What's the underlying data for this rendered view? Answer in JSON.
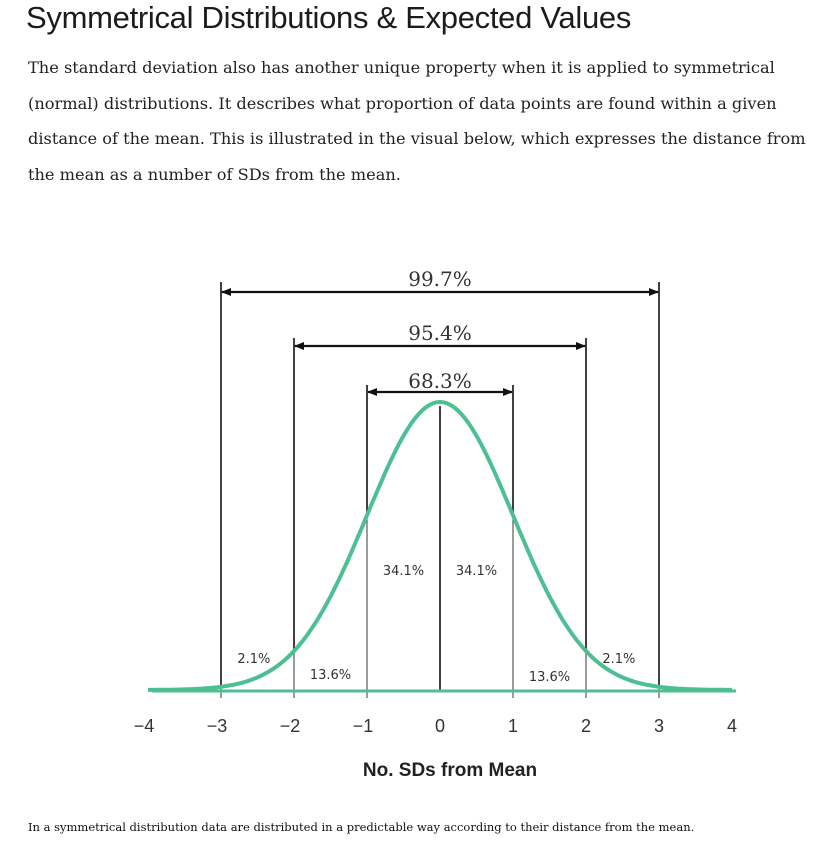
{
  "page": {
    "title": "Symmetrical Distributions & Expected Values",
    "paragraph": "The standard deviation also has another unique property when it is applied to symmetrical (normal) distributions. It describes what proportion of data points are found within a given distance of the mean. This is illustrated in the visual below, which expresses the distance from the mean as a number of SDs from the mean.",
    "caption": "In a symmetrical distribution data are distributed in a predictable way according to their distance from the mean."
  },
  "chart_data": {
    "type": "area",
    "curve": "normal distribution",
    "xlabel": "No. SDs from Mean",
    "xlim": [
      -4,
      4
    ],
    "x_ticks": [
      "-4",
      "-3",
      "-2",
      "-1",
      "0",
      "1",
      "2",
      "3",
      "4"
    ],
    "curve_color": "#4dbf93",
    "ranges": [
      {
        "label": "68.3%",
        "from": -1,
        "to": 1
      },
      {
        "label": "95.4%",
        "from": -2,
        "to": 2
      },
      {
        "label": "99.7%",
        "from": -3,
        "to": 3
      }
    ],
    "segments": [
      {
        "label": "2.1%",
        "from": -3,
        "to": -2
      },
      {
        "label": "13.6%",
        "from": -2,
        "to": -1
      },
      {
        "label": "34.1%",
        "from": -1,
        "to": 0
      },
      {
        "label": "34.1%",
        "from": 0,
        "to": 1
      },
      {
        "label": "13.6%",
        "from": 1,
        "to": 2
      },
      {
        "label": "2.1%",
        "from": 2,
        "to": 3
      }
    ]
  }
}
